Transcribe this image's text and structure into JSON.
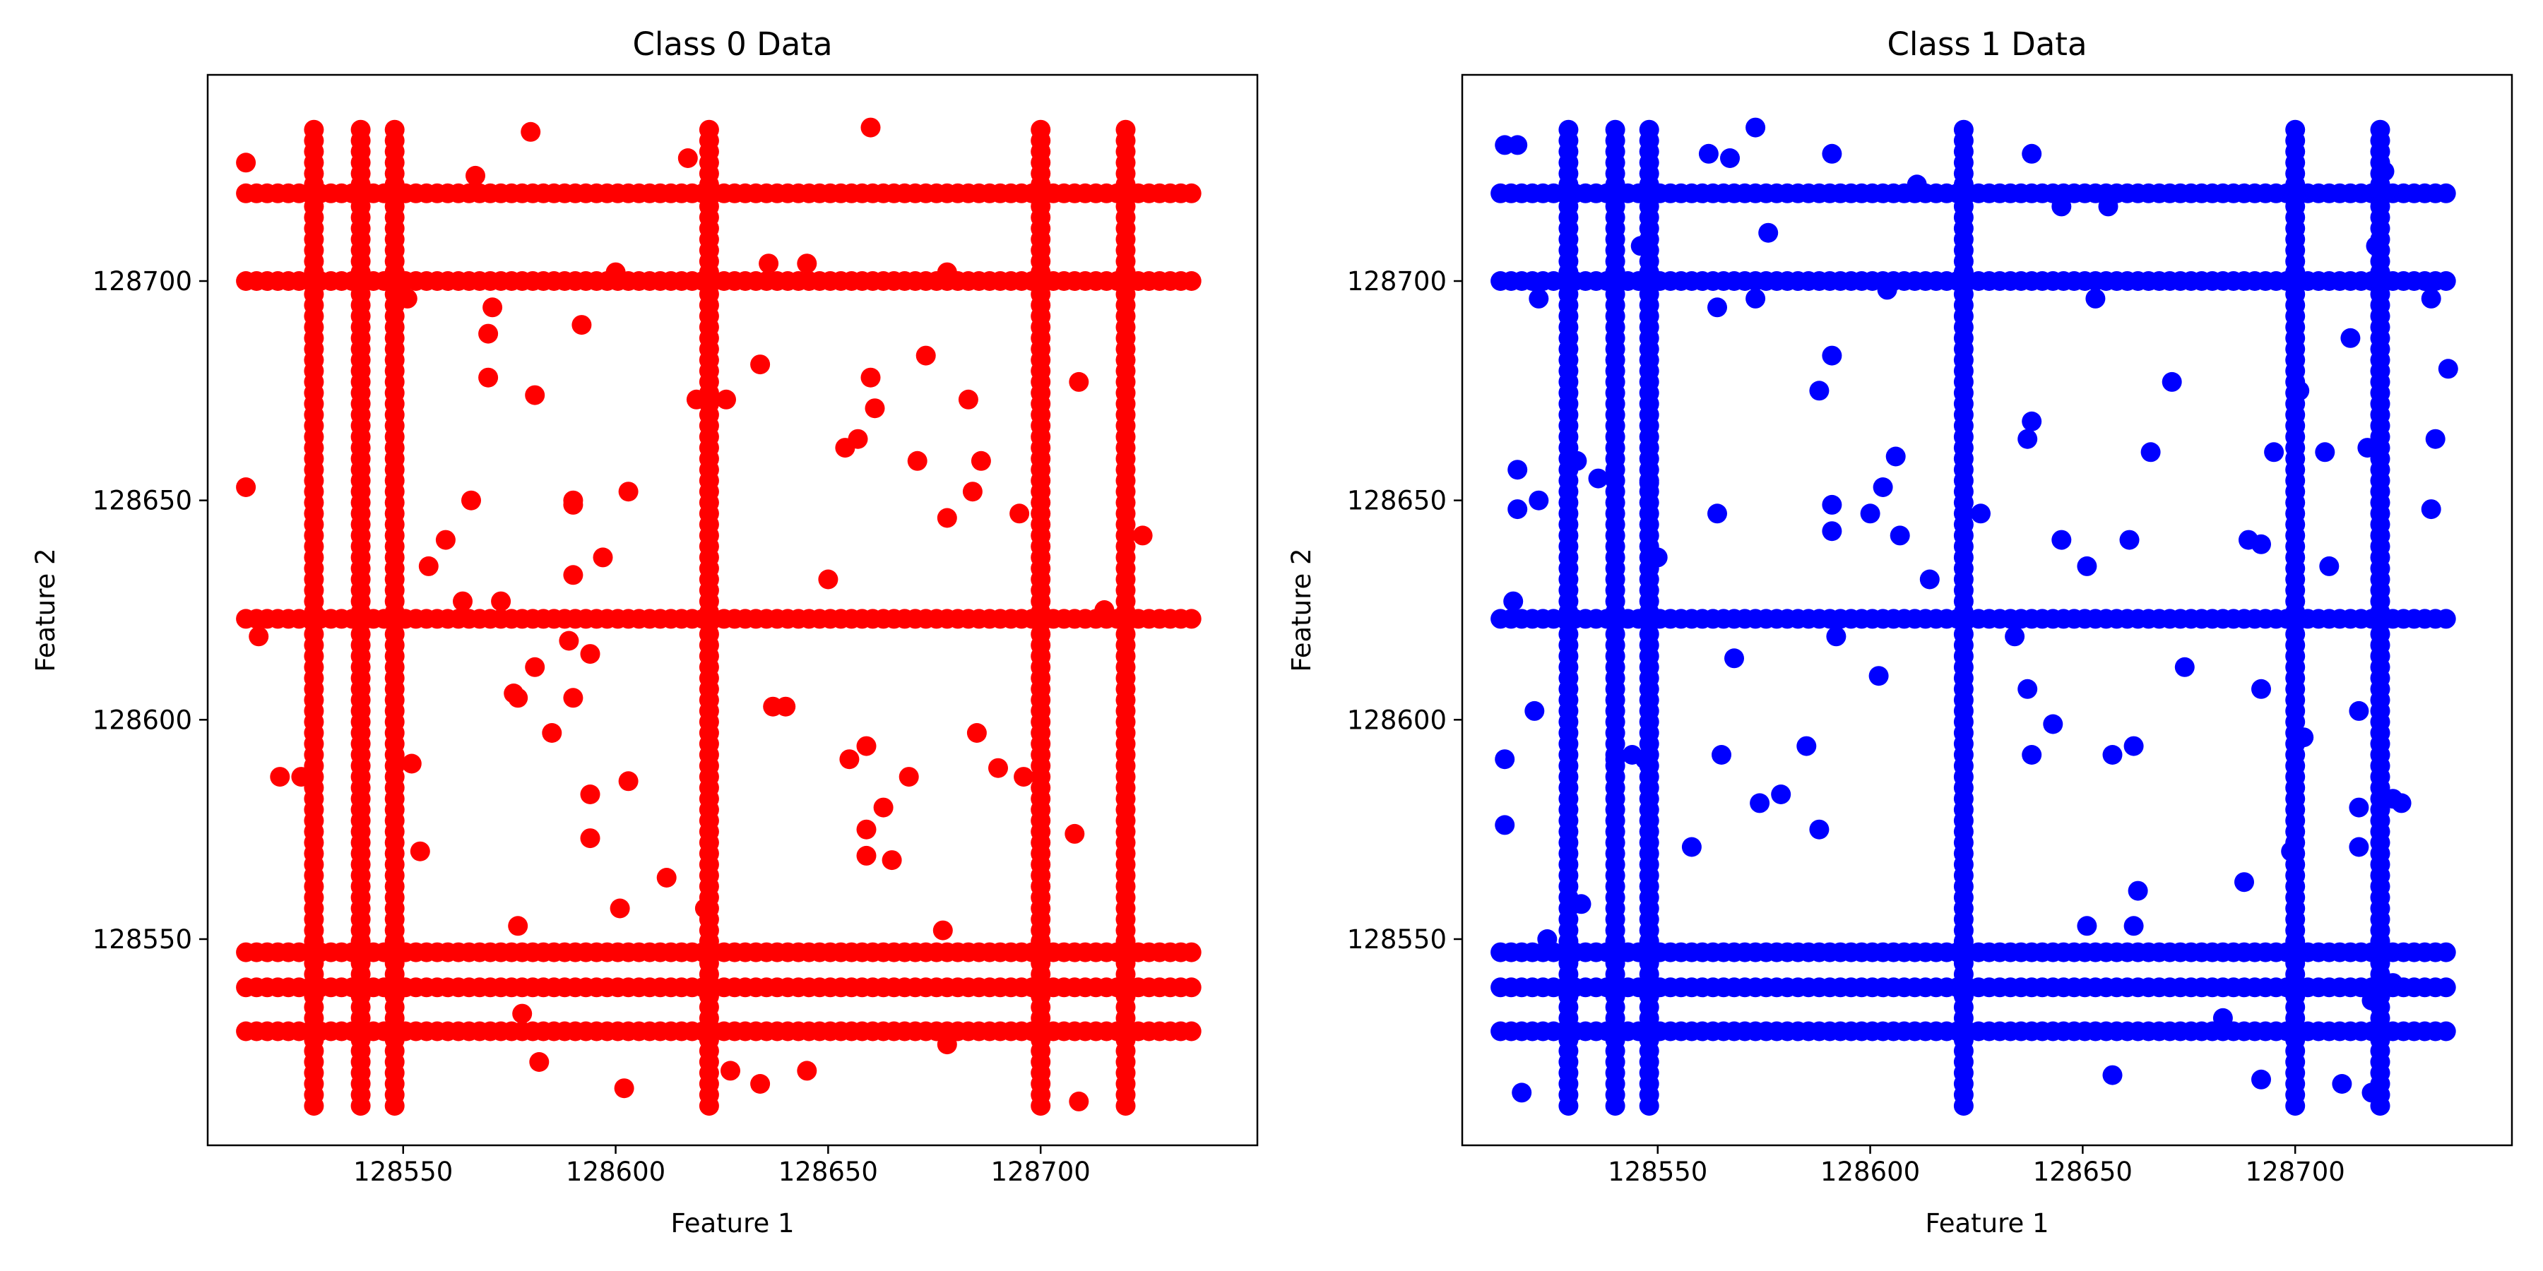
{
  "chart_data": [
    {
      "type": "scatter",
      "title": "Class 0 Data",
      "xlabel": "Feature 1",
      "ylabel": "Feature 2",
      "xlim": [
        128504,
        128751
      ],
      "ylim": [
        128503,
        128747
      ],
      "xticks": [
        128550,
        128600,
        128650,
        128700
      ],
      "yticks": [
        128550,
        128600,
        128650,
        128700
      ],
      "grid": false,
      "color": "#ff0000",
      "series": [
        {
          "x_lines": [
            128529,
            128540,
            128548,
            128622,
            128700,
            128720
          ],
          "y_lines": [
            128529,
            128539,
            128547,
            128623,
            128700,
            128720
          ],
          "points": [
            [
              128513,
              128727
            ],
            [
              128567,
              128724
            ],
            [
              128580,
              128734
            ],
            [
              128660,
              128735
            ],
            [
              128617,
              128728
            ],
            [
              128551,
              128696
            ],
            [
              128571,
              128694
            ],
            [
              128570,
              128688
            ],
            [
              128570,
              128678
            ],
            [
              128581,
              128674
            ],
            [
              128592,
              128690
            ],
            [
              128600,
              128702
            ],
            [
              128636,
              128704
            ],
            [
              128645,
              128704
            ],
            [
              128678,
              128702
            ],
            [
              128634,
              128681
            ],
            [
              128626,
              128673
            ],
            [
              128619,
              128673
            ],
            [
              128660,
              128678
            ],
            [
              128661,
              128671
            ],
            [
              128673,
              128683
            ],
            [
              128683,
              128673
            ],
            [
              128709,
              128677
            ],
            [
              128724,
              128642
            ],
            [
              128513,
              128653
            ],
            [
              128566,
              128650
            ],
            [
              128560,
              128641
            ],
            [
              128556,
              128635
            ],
            [
              128590,
              128650
            ],
            [
              128590,
              128649
            ],
            [
              128603,
              128652
            ],
            [
              128597,
              128637
            ],
            [
              128590,
              128633
            ],
            [
              128654,
              128662
            ],
            [
              128657,
              128664
            ],
            [
              128671,
              128659
            ],
            [
              128686,
              128659
            ],
            [
              128684,
              128652
            ],
            [
              128678,
              128646
            ],
            [
              128695,
              128647
            ],
            [
              128650,
              128632
            ],
            [
              128516,
              128619
            ],
            [
              128564,
              128627
            ],
            [
              128573,
              128627
            ],
            [
              128581,
              128612
            ],
            [
              128576,
              128606
            ],
            [
              128577,
              128605
            ],
            [
              128589,
              128618
            ],
            [
              128594,
              128615
            ],
            [
              128590,
              128605
            ],
            [
              128585,
              128597
            ],
            [
              128637,
              128603
            ],
            [
              128640,
              128603
            ],
            [
              128594,
              128583
            ],
            [
              128594,
              128573
            ],
            [
              128603,
              128586
            ],
            [
              128601,
              128557
            ],
            [
              128612,
              128564
            ],
            [
              128621,
              128557
            ],
            [
              128521,
              128587
            ],
            [
              128526,
              128587
            ],
            [
              128552,
              128590
            ],
            [
              128554,
              128570
            ],
            [
              128577,
              128553
            ],
            [
              128578,
              128533
            ],
            [
              128582,
              128522
            ],
            [
              128602,
              128516
            ],
            [
              128627,
              128520
            ],
            [
              128634,
              128517
            ],
            [
              128645,
              128520
            ],
            [
              128655,
              128591
            ],
            [
              128659,
              128594
            ],
            [
              128669,
              128587
            ],
            [
              128663,
              128580
            ],
            [
              128659,
              128575
            ],
            [
              128659,
              128569
            ],
            [
              128665,
              128568
            ],
            [
              128685,
              128597
            ],
            [
              128690,
              128589
            ],
            [
              128677,
              128552
            ],
            [
              128678,
              128526
            ],
            [
              128708,
              128574
            ],
            [
              128709,
              128513
            ],
            [
              128696,
              128587
            ],
            [
              128715,
              128625
            ]
          ]
        }
      ]
    },
    {
      "type": "scatter",
      "title": "Class 1 Data",
      "xlabel": "Feature 1",
      "ylabel": "Feature 2",
      "xlim": [
        128504,
        128751
      ],
      "ylim": [
        128503,
        128747
      ],
      "xticks": [
        128550,
        128600,
        128650,
        128700
      ],
      "yticks": [
        128550,
        128600,
        128650,
        128700
      ],
      "grid": false,
      "color": "#0000ff",
      "series": [
        {
          "x_lines": [
            128529,
            128540,
            128548,
            128622,
            128700,
            128720
          ],
          "y_lines": [
            128529,
            128539,
            128547,
            128623,
            128700,
            128720
          ],
          "points": [
            [
              128514,
              128731
            ],
            [
              128517,
              128731
            ],
            [
              128562,
              128729
            ],
            [
              128567,
              128728
            ],
            [
              128573,
              128735
            ],
            [
              128591,
              128729
            ],
            [
              128638,
              128729
            ],
            [
              128611,
              128722
            ],
            [
              128645,
              128717
            ],
            [
              128656,
              128717
            ],
            [
              128721,
              128725
            ],
            [
              128719,
              128708
            ],
            [
              128732,
              128696
            ],
            [
              128653,
              128696
            ],
            [
              128604,
              128698
            ],
            [
              128564,
              128694
            ],
            [
              128573,
              128696
            ],
            [
              128576,
              128711
            ],
            [
              128546,
              128708
            ],
            [
              128522,
              128696
            ],
            [
              128591,
              128683
            ],
            [
              128588,
              128675
            ],
            [
              128638,
              128668
            ],
            [
              128637,
              128664
            ],
            [
              128671,
              128677
            ],
            [
              128701,
              128675
            ],
            [
              128713,
              128687
            ],
            [
              128707,
              128661
            ],
            [
              128717,
              128662
            ],
            [
              128733,
              128664
            ],
            [
              128736,
              128680
            ],
            [
              128732,
              128648
            ],
            [
              128708,
              128635
            ],
            [
              128517,
              128657
            ],
            [
              128517,
              128648
            ],
            [
              128522,
              128650
            ],
            [
              128531,
              128659
            ],
            [
              128536,
              128655
            ],
            [
              128548,
              128654
            ],
            [
              128564,
              128647
            ],
            [
              128550,
              128637
            ],
            [
              128591,
              128649
            ],
            [
              128591,
              128643
            ],
            [
              128600,
              128647
            ],
            [
              128603,
              128653
            ],
            [
              128606,
              128660
            ],
            [
              128607,
              128642
            ],
            [
              128614,
              128632
            ],
            [
              128626,
              128647
            ],
            [
              128645,
              128641
            ],
            [
              128651,
              128635
            ],
            [
              128661,
              128641
            ],
            [
              128666,
              128661
            ],
            [
              128689,
              128641
            ],
            [
              128692,
              128640
            ],
            [
              128695,
              128661
            ],
            [
              128516,
              128627
            ],
            [
              128592,
              128619
            ],
            [
              128602,
              128610
            ],
            [
              128568,
              128614
            ],
            [
              128634,
              128619
            ],
            [
              128637,
              128607
            ],
            [
              128638,
              128592
            ],
            [
              128643,
              128599
            ],
            [
              128657,
              128592
            ],
            [
              128662,
              128594
            ],
            [
              128674,
              128612
            ],
            [
              128715,
              128602
            ],
            [
              128692,
              128607
            ],
            [
              128702,
              128596
            ],
            [
              128514,
              128591
            ],
            [
              128514,
              128576
            ],
            [
              128521,
              128602
            ],
            [
              128540,
              128591
            ],
            [
              128544,
              128592
            ],
            [
              128558,
              128571
            ],
            [
              128565,
              128592
            ],
            [
              128574,
              128581
            ],
            [
              128579,
              128583
            ],
            [
              128585,
              128594
            ],
            [
              128588,
              128575
            ],
            [
              128547,
              128591
            ],
            [
              128532,
              128558
            ],
            [
              128518,
              128515
            ],
            [
              128524,
              128550
            ],
            [
              128651,
              128553
            ],
            [
              128662,
              128553
            ],
            [
              128663,
              128561
            ],
            [
              128688,
              128563
            ],
            [
              128683,
              128532
            ],
            [
              128657,
              128519
            ],
            [
              128692,
              128518
            ],
            [
              128699,
              128570
            ],
            [
              128711,
              128517
            ],
            [
              128715,
              128580
            ],
            [
              128715,
              128571
            ],
            [
              128718,
              128515
            ],
            [
              128725,
              128581
            ],
            [
              128723,
              128582
            ],
            [
              128718,
              128536
            ],
            [
              128723,
              128540
            ]
          ]
        }
      ]
    }
  ]
}
